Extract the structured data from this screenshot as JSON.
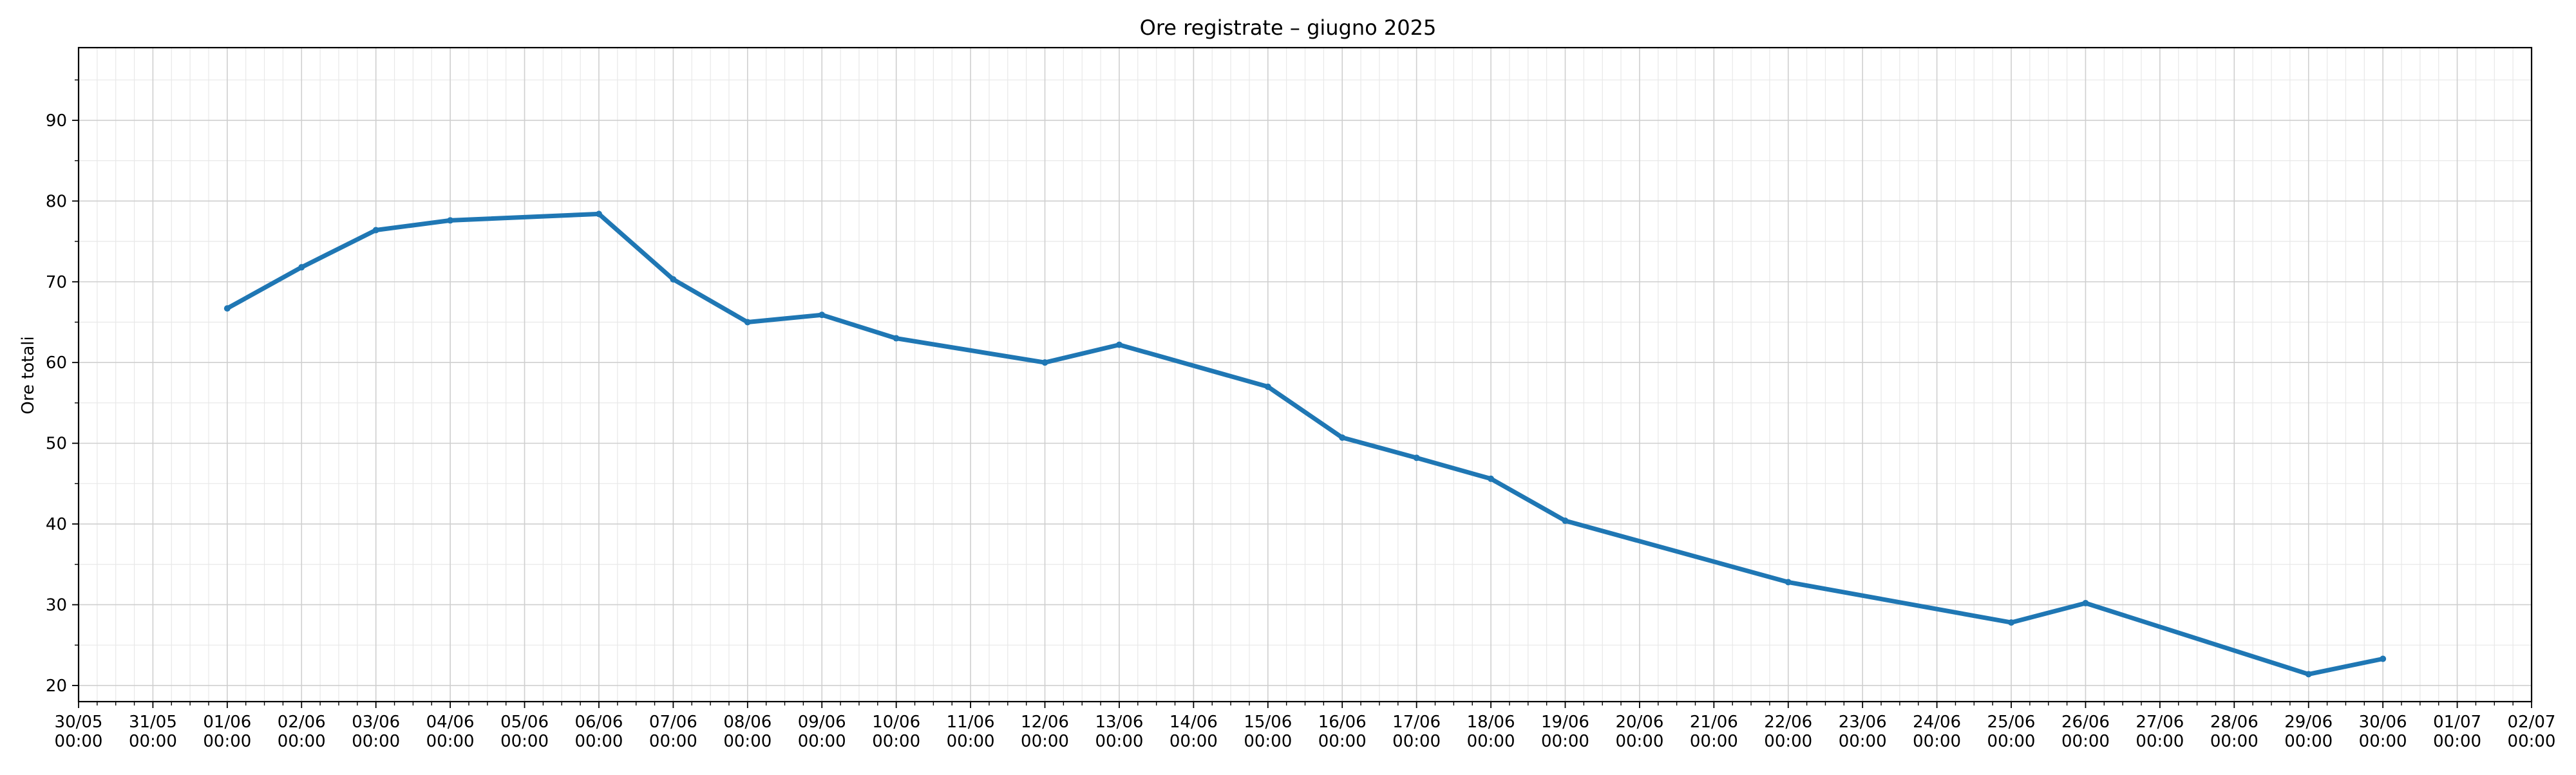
{
  "chart_data": {
    "type": "line",
    "title": "Ore registrate – giugno 2025",
    "xlabel": "",
    "ylabel": "Ore totali",
    "x_axis_type": "date",
    "xlim": [
      "2025-05-30",
      "2025-07-02"
    ],
    "ylim": [
      18,
      99
    ],
    "y_ticks": [
      20,
      30,
      40,
      50,
      60,
      70,
      80,
      90
    ],
    "x_tick_labels": [
      {
        "date": "2025-05-30",
        "label": "30/05",
        "time": "00:00"
      },
      {
        "date": "2025-05-31",
        "label": "31/05",
        "time": "00:00"
      },
      {
        "date": "2025-06-01",
        "label": "01/06",
        "time": "00:00"
      },
      {
        "date": "2025-06-02",
        "label": "02/06",
        "time": "00:00"
      },
      {
        "date": "2025-06-03",
        "label": "03/06",
        "time": "00:00"
      },
      {
        "date": "2025-06-04",
        "label": "04/06",
        "time": "00:00"
      },
      {
        "date": "2025-06-05",
        "label": "05/06",
        "time": "00:00"
      },
      {
        "date": "2025-06-06",
        "label": "06/06",
        "time": "00:00"
      },
      {
        "date": "2025-06-07",
        "label": "07/06",
        "time": "00:00"
      },
      {
        "date": "2025-06-08",
        "label": "08/06",
        "time": "00:00"
      },
      {
        "date": "2025-06-09",
        "label": "09/06",
        "time": "00:00"
      },
      {
        "date": "2025-06-10",
        "label": "10/06",
        "time": "00:00"
      },
      {
        "date": "2025-06-11",
        "label": "11/06",
        "time": "00:00"
      },
      {
        "date": "2025-06-12",
        "label": "12/06",
        "time": "00:00"
      },
      {
        "date": "2025-06-13",
        "label": "13/06",
        "time": "00:00"
      },
      {
        "date": "2025-06-14",
        "label": "14/06",
        "time": "00:00"
      },
      {
        "date": "2025-06-15",
        "label": "15/06",
        "time": "00:00"
      },
      {
        "date": "2025-06-16",
        "label": "16/06",
        "time": "00:00"
      },
      {
        "date": "2025-06-17",
        "label": "17/06",
        "time": "00:00"
      },
      {
        "date": "2025-06-18",
        "label": "18/06",
        "time": "00:00"
      },
      {
        "date": "2025-06-19",
        "label": "19/06",
        "time": "00:00"
      },
      {
        "date": "2025-06-20",
        "label": "20/06",
        "time": "00:00"
      },
      {
        "date": "2025-06-21",
        "label": "21/06",
        "time": "00:00"
      },
      {
        "date": "2025-06-22",
        "label": "22/06",
        "time": "00:00"
      },
      {
        "date": "2025-06-23",
        "label": "23/06",
        "time": "00:00"
      },
      {
        "date": "2025-06-24",
        "label": "24/06",
        "time": "00:00"
      },
      {
        "date": "2025-06-25",
        "label": "25/06",
        "time": "00:00"
      },
      {
        "date": "2025-06-26",
        "label": "26/06",
        "time": "00:00"
      },
      {
        "date": "2025-06-27",
        "label": "27/06",
        "time": "00:00"
      },
      {
        "date": "2025-06-28",
        "label": "28/06",
        "time": "00:00"
      },
      {
        "date": "2025-06-29",
        "label": "29/06",
        "time": "00:00"
      },
      {
        "date": "2025-06-30",
        "label": "30/06",
        "time": "00:00"
      },
      {
        "date": "2025-07-01",
        "label": "01/07",
        "time": "00:00"
      },
      {
        "date": "2025-07-02",
        "label": "02/07",
        "time": "00:00"
      }
    ],
    "grid": true,
    "minor_grid": true,
    "legend": "none",
    "series": [
      {
        "color": "#1f77b4",
        "points": [
          {
            "x": "2025-06-01",
            "y": 66.7
          },
          {
            "x": "2025-06-02",
            "y": 71.8
          },
          {
            "x": "2025-06-03",
            "y": 76.4
          },
          {
            "x": "2025-06-04",
            "y": 77.6
          },
          {
            "x": "2025-06-06",
            "y": 78.4
          },
          {
            "x": "2025-06-07",
            "y": 70.3
          },
          {
            "x": "2025-06-08",
            "y": 65.0
          },
          {
            "x": "2025-06-09",
            "y": 65.9
          },
          {
            "x": "2025-06-10",
            "y": 63.0
          },
          {
            "x": "2025-06-12",
            "y": 60.0
          },
          {
            "x": "2025-06-13",
            "y": 62.2
          },
          {
            "x": "2025-06-15",
            "y": 57.0
          },
          {
            "x": "2025-06-16",
            "y": 50.7
          },
          {
            "x": "2025-06-17",
            "y": 48.2
          },
          {
            "x": "2025-06-18",
            "y": 45.6
          },
          {
            "x": "2025-06-19",
            "y": 40.4
          },
          {
            "x": "2025-06-22",
            "y": 32.8
          },
          {
            "x": "2025-06-25",
            "y": 27.8
          },
          {
            "x": "2025-06-26",
            "y": 30.2
          },
          {
            "x": "2025-06-29",
            "y": 21.4
          },
          {
            "x": "2025-06-30",
            "y": 23.3
          }
        ]
      }
    ]
  }
}
